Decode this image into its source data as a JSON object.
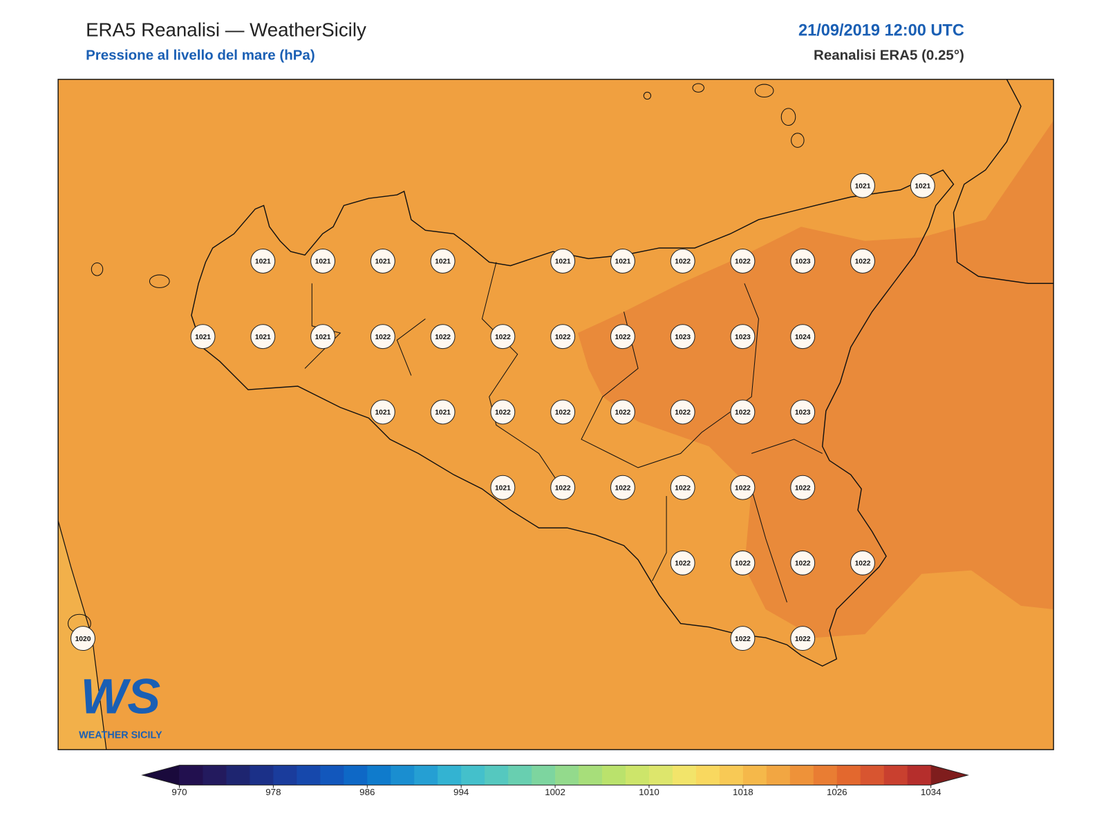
{
  "header": {
    "title": "ERA5 Reanalisi — WeatherSicily",
    "subtitle": "Pressione al livello del mare (hPa)",
    "date": "21/09/2019 12:00 UTC",
    "source": "Reanalisi ERA5 (0.25°)"
  },
  "stations": {
    "rows": [
      [
        null,
        null,
        null,
        null,
        null,
        null,
        null,
        null,
        null,
        null,
        null,
        null,
        null,
        1021,
        1021
      ],
      [
        null,
        null,
        null,
        1021,
        1021,
        1021,
        1021,
        null,
        1021,
        1021,
        1022,
        1022,
        1023,
        1022,
        null
      ],
      [
        null,
        null,
        1021,
        1021,
        1021,
        1022,
        1022,
        1022,
        1022,
        1022,
        1023,
        1023,
        1024,
        null,
        null
      ],
      [
        null,
        null,
        null,
        null,
        null,
        1021,
        1021,
        1022,
        1022,
        1022,
        1022,
        1022,
        1023,
        null,
        null
      ],
      [
        null,
        null,
        null,
        null,
        null,
        null,
        null,
        1021,
        1022,
        1022,
        1022,
        1022,
        1022,
        null,
        null
      ],
      [
        null,
        null,
        null,
        null,
        null,
        null,
        null,
        null,
        null,
        null,
        1022,
        1022,
        1022,
        1022,
        null
      ],
      [
        1020,
        null,
        null,
        null,
        null,
        null,
        null,
        null,
        null,
        null,
        null,
        1022,
        1022,
        null,
        null
      ]
    ]
  },
  "colorbar": {
    "lim": [
      970,
      1034
    ],
    "ticks": [
      970,
      978,
      986,
      994,
      1002,
      1010,
      1018,
      1026,
      1034
    ],
    "colors": [
      "#22104f",
      "#231a5e",
      "#1e2570",
      "#1b3088",
      "#1a3c9c",
      "#1648ac",
      "#1257bc",
      "#0e68c6",
      "#0f7bcc",
      "#1a8ed0",
      "#259fd3",
      "#33b3d2",
      "#44c0cb",
      "#55c8bf",
      "#68cfb0",
      "#7dd59f",
      "#93da8c",
      "#a7de7a",
      "#bae26c",
      "#cde56a",
      "#dde66c",
      "#f2e46a",
      "#f9d85f",
      "#f8c955",
      "#f5b84a",
      "#f2a642",
      "#ee9239",
      "#e97d33",
      "#e3682e",
      "#d85530",
      "#c9402f",
      "#b52e2c"
    ],
    "under": "#1a0a3c",
    "over": "#7f1d1d"
  },
  "logo": {
    "mark": "WS",
    "name": "WEATHER SICILY"
  }
}
